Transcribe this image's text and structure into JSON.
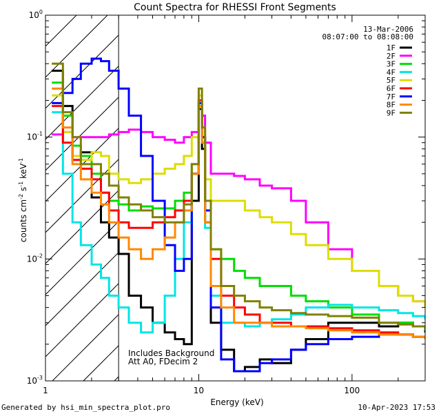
{
  "chart_data": {
    "type": "line",
    "title": "Count Spectra for RHESSI Front Segments",
    "xlabel": "Energy (keV)",
    "ylabel_parts": {
      "pre": "counts cm",
      "exp1": "-2",
      "mid1": " s",
      "exp2": "-1",
      "mid2": " keV",
      "exp3": "-1"
    },
    "xscale": "log",
    "yscale": "log",
    "xlim": [
      1,
      300
    ],
    "ylim": [
      0.001,
      1
    ],
    "x_ticks": [
      {
        "v": 1,
        "label": "1"
      },
      {
        "v": 10,
        "label": "10"
      },
      {
        "v": 100,
        "label": "100"
      }
    ],
    "y_ticks": [
      {
        "v": 1,
        "base": "10",
        "exp": "0"
      },
      {
        "v": 0.1,
        "base": "10",
        "exp": "-1"
      },
      {
        "v": 0.01,
        "base": "10",
        "exp": "-2"
      },
      {
        "v": 0.001,
        "base": "10",
        "exp": "-3"
      }
    ],
    "date_text": "13-Mar-2006",
    "time_text": "08:07:00 to 08:08:00",
    "note_lines": [
      "Includes Background",
      "Att A0, FDecim 2"
    ],
    "hatch_region_kev": [
      1,
      3
    ],
    "series": [
      {
        "name": "1F",
        "color": "#000000",
        "x": [
          1.1,
          1.3,
          1.5,
          1.7,
          2.0,
          2.3,
          2.6,
          3.0,
          3.5,
          4.2,
          5.0,
          6.0,
          7.0,
          8.0,
          9.0,
          10.0,
          10.5,
          11.0,
          12.0,
          14.0,
          17.0,
          20.0,
          25.0,
          30.0,
          40.0,
          50.0,
          70.0,
          100.0,
          150.0,
          200.0,
          250.0,
          300.0
        ],
        "y": [
          0.35,
          0.18,
          0.07,
          0.075,
          0.032,
          0.02,
          0.015,
          0.011,
          0.005,
          0.004,
          0.003,
          0.0025,
          0.0022,
          0.002,
          0.03,
          0.17,
          0.08,
          0.02,
          0.003,
          0.0018,
          0.0012,
          0.0013,
          0.0015,
          0.0014,
          0.0018,
          0.0022,
          0.003,
          0.003,
          0.0028,
          0.003,
          0.0028,
          0.0025
        ]
      },
      {
        "name": "2F",
        "color": "#ff00ff",
        "x": [
          1.1,
          1.3,
          1.5,
          1.7,
          2.0,
          2.3,
          2.6,
          3.0,
          3.5,
          4.2,
          5.0,
          6.0,
          7.0,
          8.0,
          9.0,
          10.0,
          10.5,
          11.0,
          12.0,
          14.0,
          17.0,
          20.0,
          25.0,
          30.0,
          40.0,
          50.0,
          70.0,
          100.0,
          150.0,
          200.0,
          250.0,
          300.0
        ],
        "y": [
          0.105,
          0.11,
          0.1,
          0.1,
          0.1,
          0.1,
          0.105,
          0.11,
          0.115,
          0.11,
          0.1,
          0.095,
          0.09,
          0.1,
          0.11,
          0.2,
          0.15,
          0.09,
          0.05,
          0.05,
          0.048,
          0.045,
          0.04,
          0.038,
          0.03,
          0.02,
          0.012,
          0.008,
          0.006,
          0.005,
          0.0045,
          0.004
        ]
      },
      {
        "name": "3F",
        "color": "#00dd00",
        "x": [
          1.1,
          1.3,
          1.5,
          1.7,
          2.0,
          2.3,
          2.6,
          3.0,
          3.5,
          4.2,
          5.0,
          6.0,
          7.0,
          8.0,
          9.0,
          10.0,
          10.5,
          11.0,
          12.0,
          14.0,
          17.0,
          20.0,
          25.0,
          30.0,
          40.0,
          50.0,
          70.0,
          100.0,
          150.0,
          200.0,
          250.0,
          300.0
        ],
        "y": [
          0.28,
          0.15,
          0.085,
          0.07,
          0.05,
          0.035,
          0.03,
          0.028,
          0.025,
          0.027,
          0.026,
          0.026,
          0.03,
          0.035,
          0.06,
          0.2,
          0.1,
          0.02,
          0.012,
          0.01,
          0.008,
          0.007,
          0.006,
          0.006,
          0.005,
          0.0045,
          0.004,
          0.0035,
          0.003,
          0.003,
          0.0028,
          0.0026
        ]
      },
      {
        "name": "4F",
        "color": "#00e5e5",
        "x": [
          1.1,
          1.3,
          1.5,
          1.7,
          2.0,
          2.3,
          2.6,
          3.0,
          3.5,
          4.2,
          5.0,
          6.0,
          7.0,
          8.0,
          9.0,
          10.0,
          10.5,
          11.0,
          12.0,
          14.0,
          17.0,
          20.0,
          25.0,
          30.0,
          40.0,
          50.0,
          70.0,
          100.0,
          150.0,
          200.0,
          250.0,
          300.0
        ],
        "y": [
          0.16,
          0.05,
          0.02,
          0.013,
          0.009,
          0.007,
          0.005,
          0.004,
          0.003,
          0.0025,
          0.003,
          0.005,
          0.01,
          0.02,
          0.05,
          0.2,
          0.09,
          0.018,
          0.005,
          0.003,
          0.003,
          0.0028,
          0.003,
          0.0032,
          0.0035,
          0.004,
          0.0042,
          0.004,
          0.0038,
          0.0036,
          0.0034,
          0.0032
        ]
      },
      {
        "name": "5F",
        "color": "#dddd00",
        "x": [
          1.1,
          1.3,
          1.5,
          1.7,
          2.0,
          2.3,
          2.6,
          3.0,
          3.5,
          4.2,
          5.0,
          6.0,
          7.0,
          8.0,
          9.0,
          10.0,
          10.5,
          11.0,
          12.0,
          14.0,
          17.0,
          20.0,
          25.0,
          30.0,
          40.0,
          50.0,
          70.0,
          100.0,
          150.0,
          200.0,
          250.0,
          300.0
        ],
        "y": [
          0.22,
          0.11,
          0.07,
          0.065,
          0.075,
          0.07,
          0.05,
          0.045,
          0.042,
          0.045,
          0.05,
          0.055,
          0.06,
          0.07,
          0.1,
          0.22,
          0.12,
          0.045,
          0.03,
          0.03,
          0.03,
          0.025,
          0.022,
          0.02,
          0.016,
          0.013,
          0.01,
          0.008,
          0.006,
          0.005,
          0.0045,
          0.004
        ]
      },
      {
        "name": "6F",
        "color": "#ff0000",
        "x": [
          1.1,
          1.3,
          1.5,
          1.7,
          2.0,
          2.3,
          2.6,
          3.0,
          3.5,
          4.2,
          5.0,
          6.0,
          7.0,
          8.0,
          9.0,
          10.0,
          10.5,
          11.0,
          12.0,
          14.0,
          17.0,
          20.0,
          25.0,
          30.0,
          40.0,
          50.0,
          70.0,
          100.0,
          150.0,
          200.0,
          250.0,
          300.0
        ],
        "y": [
          0.18,
          0.09,
          0.065,
          0.055,
          0.045,
          0.035,
          0.025,
          0.02,
          0.018,
          0.018,
          0.02,
          0.022,
          0.025,
          0.03,
          0.05,
          0.2,
          0.1,
          0.025,
          0.01,
          0.005,
          0.004,
          0.0035,
          0.003,
          0.003,
          0.0028,
          0.0028,
          0.0027,
          0.0026,
          0.0025,
          0.0024,
          0.0023,
          0.0022
        ]
      },
      {
        "name": "7F",
        "color": "#0000ff",
        "x": [
          1.1,
          1.3,
          1.5,
          1.7,
          2.0,
          2.3,
          2.6,
          3.0,
          3.5,
          4.2,
          5.0,
          6.0,
          7.0,
          8.0,
          9.0,
          10.0,
          10.5,
          11.0,
          12.0,
          14.0,
          17.0,
          20.0,
          25.0,
          30.0,
          40.0,
          50.0,
          70.0,
          100.0,
          150.0,
          200.0,
          250.0,
          300.0
        ],
        "y": [
          0.19,
          0.23,
          0.3,
          0.4,
          0.44,
          0.42,
          0.35,
          0.25,
          0.15,
          0.07,
          0.03,
          0.013,
          0.008,
          0.01,
          0.05,
          0.19,
          0.1,
          0.025,
          0.004,
          0.0015,
          0.0012,
          0.0012,
          0.0014,
          0.0015,
          0.0018,
          0.002,
          0.0022,
          0.0023,
          0.0024,
          0.0024,
          0.0023,
          0.0022
        ]
      },
      {
        "name": "8F",
        "color": "#ff8800",
        "x": [
          1.1,
          1.3,
          1.5,
          1.7,
          2.0,
          2.3,
          2.6,
          3.0,
          3.5,
          4.2,
          5.0,
          6.0,
          7.0,
          8.0,
          9.0,
          10.0,
          10.5,
          11.0,
          12.0,
          14.0,
          17.0,
          20.0,
          25.0,
          30.0,
          40.0,
          50.0,
          70.0,
          100.0,
          150.0,
          200.0,
          250.0,
          300.0
        ],
        "y": [
          0.25,
          0.12,
          0.06,
          0.045,
          0.035,
          0.028,
          0.02,
          0.015,
          0.012,
          0.01,
          0.012,
          0.015,
          0.02,
          0.025,
          0.05,
          0.18,
          0.09,
          0.02,
          0.006,
          0.004,
          0.003,
          0.003,
          0.003,
          0.0028,
          0.0028,
          0.0027,
          0.0026,
          0.0025,
          0.0024,
          0.0024,
          0.0023,
          0.0022
        ]
      },
      {
        "name": "9F",
        "color": "#808000",
        "x": [
          1.1,
          1.3,
          1.5,
          1.7,
          2.0,
          2.3,
          2.6,
          3.0,
          3.5,
          4.2,
          5.0,
          6.0,
          7.0,
          8.0,
          9.0,
          10.0,
          10.5,
          11.0,
          12.0,
          14.0,
          17.0,
          20.0,
          25.0,
          30.0,
          40.0,
          50.0,
          70.0,
          100.0,
          150.0,
          200.0,
          250.0,
          300.0
        ],
        "y": [
          0.4,
          0.16,
          0.1,
          0.06,
          0.06,
          0.05,
          0.04,
          0.032,
          0.028,
          0.025,
          0.022,
          0.02,
          0.02,
          0.028,
          0.06,
          0.25,
          0.12,
          0.03,
          0.012,
          0.006,
          0.005,
          0.0045,
          0.004,
          0.0038,
          0.0036,
          0.0035,
          0.0034,
          0.0033,
          0.003,
          0.0029,
          0.0028,
          0.0027
        ]
      }
    ]
  },
  "footer": {
    "left": "Generated by hsi_min_spectra_plot.pro",
    "right": "10-Apr-2023 17:53"
  }
}
